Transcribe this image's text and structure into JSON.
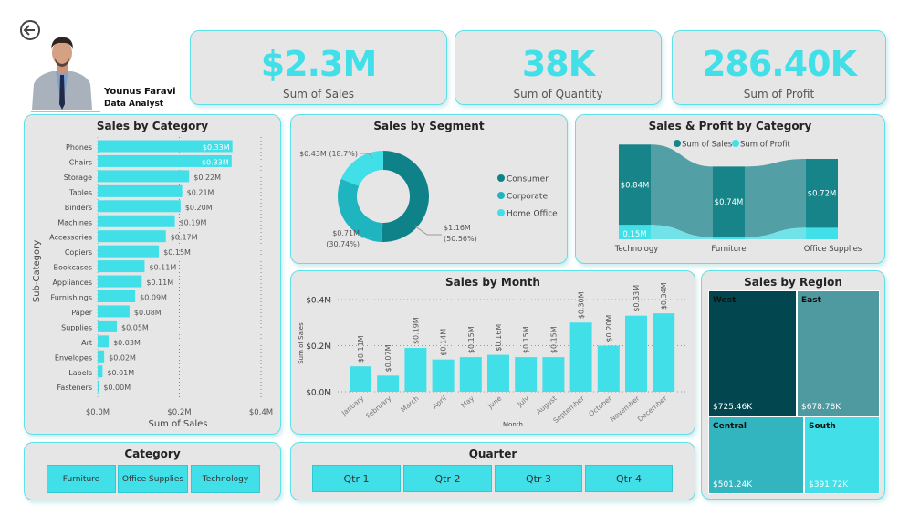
{
  "profile": {
    "name": "Younus Faravi",
    "role": "Data Analyst"
  },
  "kpis": [
    {
      "value": "$2.3M",
      "label": "Sum of Sales"
    },
    {
      "value": "38K",
      "label": "Sum of Quantity"
    },
    {
      "value": "286.40K",
      "label": "Sum of Profit"
    }
  ],
  "colors": {
    "accent": "#41dfe8",
    "dark_teal": "#0e8288",
    "mid_teal": "#1fb5c0",
    "card_bg": "#e6e6e6"
  },
  "chart_data": [
    {
      "type": "bar",
      "orientation": "horizontal",
      "title": "Sales by Category",
      "xlabel": "Sum of Sales",
      "ylabel": "Sub-Category",
      "xlim": [
        0,
        0.4
      ],
      "xticks": [
        "$0.0M",
        "$0.2M",
        "$0.4M"
      ],
      "grid": true,
      "categories": [
        "Phones",
        "Chairs",
        "Storage",
        "Tables",
        "Binders",
        "Machines",
        "Accessories",
        "Copiers",
        "Bookcases",
        "Appliances",
        "Furnishings",
        "Paper",
        "Supplies",
        "Art",
        "Envelopes",
        "Labels",
        "Fasteners"
      ],
      "values": [
        0.33,
        0.328,
        0.224,
        0.207,
        0.203,
        0.189,
        0.167,
        0.15,
        0.115,
        0.108,
        0.092,
        0.078,
        0.047,
        0.027,
        0.016,
        0.012,
        0.003
      ],
      "labels": [
        "$0.33M",
        "$0.33M",
        "$0.22M",
        "$0.21M",
        "$0.20M",
        "$0.19M",
        "$0.17M",
        "$0.15M",
        "$0.11M",
        "$0.11M",
        "$0.09M",
        "$0.08M",
        "$0.05M",
        "$0.03M",
        "$0.02M",
        "$0.01M",
        "$0.00M"
      ]
    },
    {
      "type": "pie",
      "subtype": "donut",
      "title": "Sales by Segment",
      "legend_position": "right",
      "categories": [
        "Consumer",
        "Corporate",
        "Home Office"
      ],
      "values": [
        1.16,
        0.71,
        0.43
      ],
      "percents": [
        50.56,
        30.74,
        18.7
      ],
      "labels": [
        [
          "$1.16M",
          "(50.56%)"
        ],
        [
          "$0.71M",
          "(30.74%)"
        ],
        [
          "$0.43M (18.7%)"
        ]
      ],
      "colors": [
        "#0e8288",
        "#1fb5c0",
        "#41dfe8"
      ]
    },
    {
      "type": "ribbon",
      "title": "Sales & Profit by Category",
      "legend_position": "top",
      "categories": [
        "Technology",
        "Furniture",
        "Office Supplies"
      ],
      "series": [
        {
          "name": "Sum of Sales",
          "values": [
            0.84,
            0.74,
            0.72
          ],
          "labels": [
            "$0.84M",
            "$0.74M",
            "$0.72M"
          ],
          "color": "#168489"
        },
        {
          "name": "Sum of Profit",
          "values": [
            0.15,
            0.02,
            0.12
          ],
          "labels": [
            "0.15M",
            "",
            ""
          ],
          "color": "#41dfe8"
        }
      ]
    },
    {
      "type": "bar",
      "title": "Sales by Month",
      "xlabel": "Month",
      "ylabel": "Sum of Sales",
      "ylim": [
        0,
        0.4
      ],
      "yticks": [
        "$0.0M",
        "$0.2M",
        "$0.4M"
      ],
      "grid": true,
      "categories": [
        "January",
        "February",
        "March",
        "April",
        "May",
        "June",
        "July",
        "August",
        "September",
        "October",
        "November",
        "December"
      ],
      "values": [
        0.11,
        0.07,
        0.19,
        0.14,
        0.15,
        0.16,
        0.15,
        0.15,
        0.3,
        0.2,
        0.33,
        0.34
      ],
      "labels": [
        "$0.11M",
        "$0.07M",
        "$0.19M",
        "$0.14M",
        "$0.15M",
        "$0.16M",
        "$0.15M",
        "$0.15M",
        "$0.30M",
        "$0.20M",
        "$0.33M",
        "$0.34M"
      ]
    },
    {
      "type": "treemap",
      "title": "Sales by Region",
      "categories": [
        "West",
        "East",
        "Central",
        "South"
      ],
      "values": [
        725.46,
        678.78,
        501.24,
        391.72
      ],
      "labels": [
        "$725.46K",
        "$678.78K",
        "$501.24K",
        "$391.72K"
      ],
      "colors": [
        "#02474f",
        "#4e9aa0",
        "#32b5bf",
        "#41dfe8"
      ]
    }
  ],
  "slicers": {
    "category": {
      "title": "Category",
      "options": [
        "Furniture",
        "Office Supplies",
        "Technology"
      ]
    },
    "quarter": {
      "title": "Quarter",
      "options": [
        "Qtr 1",
        "Qtr 2",
        "Qtr 3",
        "Qtr 4"
      ]
    }
  }
}
